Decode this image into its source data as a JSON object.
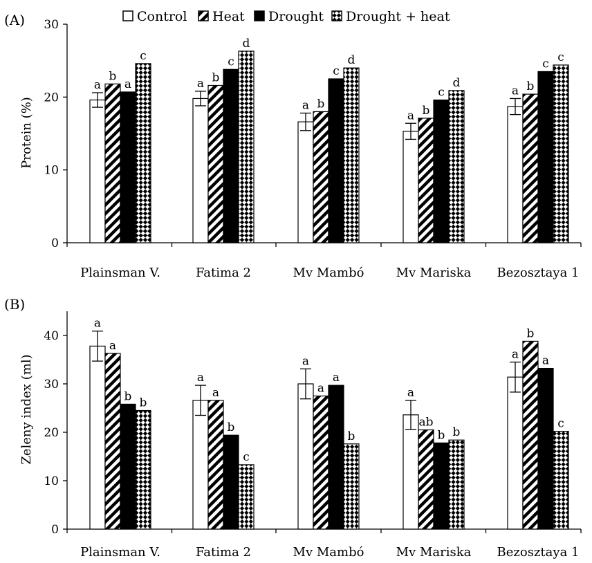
{
  "colors": {
    "ink": "#000000",
    "background": "#ffffff"
  },
  "legend": [
    {
      "name": "Control",
      "pattern": "open"
    },
    {
      "name": "Heat",
      "pattern": "diagonal-stripes"
    },
    {
      "name": "Drought",
      "pattern": "solid-black"
    },
    {
      "name": "Drought + heat",
      "pattern": "checker-diamonds"
    }
  ],
  "chart_data": [
    {
      "panel": "(A)",
      "type": "bar",
      "categories": [
        "Plainsman V.",
        "Fatima 2",
        "Mv Mambó",
        "Mv Mariska",
        "Bezosztaya 1"
      ],
      "ylabel": "Protein (%)",
      "xlabel": "",
      "ylim": [
        0,
        30
      ],
      "yticks": [
        0,
        10,
        20,
        30
      ],
      "grid": false,
      "legend_position": "top",
      "error_bars_on": "Control",
      "series": [
        {
          "name": "Control",
          "values": [
            19.6,
            19.8,
            16.6,
            15.3,
            18.7
          ],
          "errors": [
            1.0,
            1.0,
            1.2,
            1.1,
            1.1
          ],
          "letters": [
            "a",
            "a",
            "a",
            "a",
            "a"
          ]
        },
        {
          "name": "Heat",
          "values": [
            21.8,
            21.6,
            18.0,
            17.1,
            20.4
          ],
          "letters": [
            "b",
            "b",
            "b",
            "b",
            "b"
          ]
        },
        {
          "name": "Drought",
          "values": [
            20.7,
            23.8,
            22.5,
            19.6,
            23.5
          ],
          "letters": [
            "a",
            "c",
            "c",
            "c",
            "c"
          ]
        },
        {
          "name": "Drought + heat",
          "values": [
            24.6,
            26.3,
            24.0,
            20.9,
            24.4
          ],
          "letters": [
            "c",
            "d",
            "d",
            "d",
            "c"
          ]
        }
      ]
    },
    {
      "panel": "(B)",
      "type": "bar",
      "categories": [
        "Plainsman V.",
        "Fatima 2",
        "Mv Mambó",
        "Mv Mariska",
        "Bezosztaya 1"
      ],
      "ylabel": "Zeleny index (ml)",
      "xlabel": "",
      "ylim": [
        0,
        45
      ],
      "yticks": [
        0,
        10,
        20,
        30,
        40
      ],
      "grid": false,
      "error_bars_on": "Control",
      "series": [
        {
          "name": "Control",
          "values": [
            37.8,
            26.6,
            30.0,
            23.6,
            31.4
          ],
          "errors": [
            3.1,
            3.1,
            3.1,
            3.0,
            3.1
          ],
          "letters": [
            "a",
            "a",
            "a",
            "a",
            "a"
          ]
        },
        {
          "name": "Heat",
          "values": [
            36.3,
            26.6,
            27.5,
            20.5,
            38.8
          ],
          "letters": [
            "a",
            "a",
            "a",
            "ab",
            "b"
          ]
        },
        {
          "name": "Drought",
          "values": [
            25.8,
            19.4,
            29.7,
            17.8,
            33.2
          ],
          "letters": [
            "b",
            "b",
            "a",
            "b",
            "a"
          ]
        },
        {
          "name": "Drought + heat",
          "values": [
            24.5,
            13.3,
            17.6,
            18.4,
            20.2
          ],
          "letters": [
            "b",
            "c",
            "b",
            "b",
            "c"
          ]
        }
      ]
    }
  ]
}
